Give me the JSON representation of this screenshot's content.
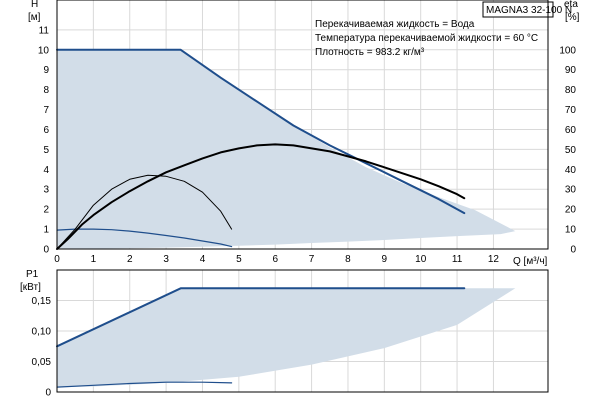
{
  "chart_data": [
    {
      "type": "line",
      "model": "MAGNA3 32-100 N",
      "annotations": [
        "Перекачиваемая жидкость = Вода",
        "Температура перекачиваемой жидкости = 60 °C",
        "Плотность = 983.2 кг/м³"
      ],
      "ylabel_left": [
        "H",
        "[м]"
      ],
      "ylabel_right": [
        "eta",
        "[%]"
      ],
      "xlabel": "Q [м³/ч]",
      "xlim": [
        0,
        13.5
      ],
      "ylim": [
        0,
        12.5
      ],
      "eta_lim": [
        0,
        125
      ],
      "x_ticks": [
        "0",
        "1",
        "2",
        "3",
        "4",
        "5",
        "6",
        "7",
        "8",
        "9",
        "10",
        "11",
        "12"
      ],
      "y_ticks": [
        "0",
        "1",
        "2",
        "3",
        "4",
        "5",
        "6",
        "7",
        "8",
        "9",
        "10",
        "11"
      ],
      "eta_ticks": [
        "0",
        "10",
        "20",
        "30",
        "40",
        "50",
        "60",
        "70",
        "80",
        "90",
        "100"
      ],
      "grid": true,
      "series": [
        {
          "kind": "area",
          "color": "#d2dde8",
          "x": [
            0,
            3.4,
            4.5,
            5.5,
            6.5,
            7.5,
            8.5,
            9.5,
            10.5,
            11.5,
            12.6,
            12.2,
            11,
            10,
            9,
            8,
            7,
            6,
            5,
            4,
            3,
            2,
            1,
            0
          ],
          "y": [
            10,
            10,
            8.6,
            7.4,
            6.2,
            5.1,
            4.1,
            3.3,
            2.6,
            1.95,
            0.9,
            0.75,
            0.65,
            0.55,
            0.45,
            0.37,
            0.3,
            0.22,
            0.16,
            0.11,
            0.07,
            0.04,
            0.02,
            0
          ]
        },
        {
          "kind": "line",
          "color": "#1f4e8c",
          "width": 2,
          "x": [
            0,
            3.4,
            4.5,
            5.5,
            6.5,
            7.5,
            8.5,
            9.5,
            10.5,
            11.2
          ],
          "y": [
            10,
            10,
            8.6,
            7.4,
            6.2,
            5.2,
            4.3,
            3.4,
            2.5,
            1.8
          ]
        },
        {
          "kind": "line",
          "color": "#1f4e8c",
          "width": 1.2,
          "x": [
            0,
            0.5,
            1,
            1.5,
            2,
            2.5,
            3,
            3.5,
            4,
            4.5,
            4.8
          ],
          "y": [
            0.95,
            1.0,
            1.0,
            0.97,
            0.9,
            0.8,
            0.68,
            0.55,
            0.4,
            0.25,
            0.12
          ]
        },
        {
          "kind": "line",
          "color": "#000000",
          "width": 2,
          "axis": "eta",
          "x": [
            0,
            0.3,
            0.7,
            1,
            1.5,
            2,
            2.5,
            3,
            3.5,
            4,
            4.5,
            5,
            5.5,
            6,
            6.5,
            7,
            7.5,
            8,
            8.5,
            9,
            9.5,
            10,
            10.5,
            11,
            11.2
          ],
          "y": [
            0,
            5,
            12.5,
            17,
            23.5,
            29,
            34,
            38.5,
            42,
            45.5,
            48.5,
            50.5,
            52,
            52.5,
            52,
            50.5,
            49,
            46.5,
            44,
            41,
            38,
            35,
            31.5,
            27.5,
            25.5
          ]
        },
        {
          "kind": "line",
          "color": "#000000",
          "width": 1,
          "axis": "eta",
          "x": [
            0,
            0.5,
            1,
            1.5,
            2,
            2.5,
            3,
            3.5,
            4,
            4.5,
            4.8
          ],
          "y": [
            0,
            10,
            22,
            30,
            35,
            37,
            36.5,
            34,
            28.5,
            19,
            10
          ]
        }
      ]
    },
    {
      "type": "line",
      "ylabel": [
        "P1",
        "[кВт]"
      ],
      "xlim": [
        0,
        13.5
      ],
      "ylim": [
        0,
        0.2
      ],
      "y_ticks": [
        "0",
        "0,05",
        "0,10",
        "0,15"
      ],
      "grid": true,
      "series": [
        {
          "kind": "area",
          "color": "#d2dde8",
          "x": [
            0,
            3.4,
            11.2,
            12.6,
            11,
            9,
            7,
            5,
            3,
            1,
            0
          ],
          "y": [
            0.075,
            0.17,
            0.17,
            0.17,
            0.11,
            0.072,
            0.045,
            0.025,
            0.015,
            0.009,
            0.008
          ]
        },
        {
          "kind": "line",
          "color": "#1f4e8c",
          "width": 2,
          "x": [
            0,
            3.4,
            11.2
          ],
          "y": [
            0.075,
            0.17,
            0.17
          ]
        },
        {
          "kind": "line",
          "color": "#1f4e8c",
          "width": 1.2,
          "x": [
            0,
            1,
            2,
            3,
            4,
            4.8
          ],
          "y": [
            0.008,
            0.011,
            0.014,
            0.016,
            0.016,
            0.015
          ]
        }
      ]
    }
  ]
}
